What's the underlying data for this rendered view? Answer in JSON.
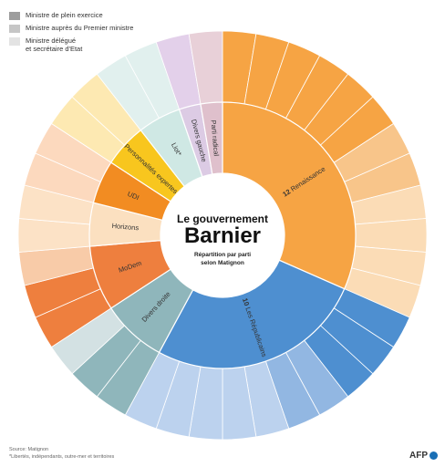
{
  "legend": {
    "items": [
      {
        "label": "Ministre de plein exercice",
        "color": "#9d9d9d"
      },
      {
        "label": "Ministre auprès du Premier ministre",
        "color": "#c6c6c6"
      },
      {
        "label": "Ministre délégué\net secrétaire d'Etat",
        "color": "#e3e3e3"
      }
    ]
  },
  "center": {
    "title": "Le gouvernement",
    "name": "Barnier",
    "subtitle_line1": "Répartition par parti",
    "subtitle_line2": "selon Matignon"
  },
  "footer": {
    "source": "Source: Matignon",
    "footnote": "*Libertés, indépendants, outre-mer et territoires",
    "logo_text": "AFP"
  },
  "chart_data": {
    "type": "sunburst",
    "title": "Le gouvernement Barnier",
    "subtitle": "Répartition par parti selon Matignon",
    "parties": [
      {
        "name": "Renaissance",
        "label": "12 Renaissance",
        "count": 12,
        "ministers": {
          "plein_exercice": 6,
          "aupres_premier_ministre": 2,
          "delegue_secretaire_etat": 4
        },
        "colors": [
          "#f6a444",
          "#f8c58a",
          "#fbdcb6"
        ],
        "inner_color": "#f6a444"
      },
      {
        "name": "Les Républicains",
        "label": "10 Les Républicains",
        "count": 10,
        "ministers": {
          "plein_exercice": 3,
          "aupres_premier_ministre": 2,
          "delegue_secretaire_etat": 5
        },
        "colors": [
          "#4e8fd0",
          "#92b7e2",
          "#bcd2ee"
        ],
        "inner_color": "#4e8fd0"
      },
      {
        "name": "Divers droite",
        "label": "Divers droite",
        "count": 3,
        "ministers": {
          "plein_exercice": 2,
          "aupres_premier_ministre": 0,
          "delegue_secretaire_etat": 1
        },
        "colors": [
          "#8fb6bb",
          "#b8d0d3",
          "#d3e1e3"
        ],
        "inner_color": "#8fb6bb"
      },
      {
        "name": "MoDem",
        "label": "MoDem",
        "count": 3,
        "ministers": {
          "plein_exercice": 2,
          "aupres_premier_ministre": 0,
          "delegue_secretaire_etat": 1
        },
        "colors": [
          "#ee7f3e",
          "#f4b184",
          "#f8cba8"
        ],
        "inner_color": "#ee7f3e"
      },
      {
        "name": "Horizons",
        "label": "Horizons",
        "count": 2,
        "ministers": {
          "plein_exercice": 0,
          "aupres_premier_ministre": 0,
          "delegue_secretaire_etat": 2
        },
        "colors": [
          "#f9d6b0",
          "#fad9b6",
          "#fce2c6"
        ],
        "inner_color": "#fbe0c0"
      },
      {
        "name": "UDI",
        "label": "UDI",
        "count": 2,
        "ministers": {
          "plein_exercice": 0,
          "aupres_premier_ministre": 0,
          "delegue_secretaire_etat": 2
        },
        "colors": [
          "#f59b5a",
          "#f8be93",
          "#fcd9be"
        ],
        "inner_color": "#f28c22"
      },
      {
        "name": "Personnalités expertes",
        "label": "Personnalités expertes",
        "count": 2,
        "ministers": {
          "plein_exercice": 0,
          "aupres_premier_ministre": 0,
          "delegue_secretaire_etat": 2
        },
        "colors": [
          "#f8cc3a",
          "#fbe096",
          "#fde9b2"
        ],
        "inner_color": "#f8c61e"
      },
      {
        "name": "Liot*",
        "label": "Liot*",
        "count": 2,
        "ministers": {
          "plein_exercice": 0,
          "aupres_premier_ministre": 0,
          "delegue_secretaire_etat": 2
        },
        "colors": [
          "#cfe8e4",
          "#cfe8e4",
          "#e1f0ee"
        ],
        "inner_color": "#cfe8e4"
      },
      {
        "name": "Divers gauche",
        "label": "Divers gauche",
        "count": 1,
        "ministers": {
          "plein_exercice": 0,
          "aupres_premier_ministre": 0,
          "delegue_secretaire_etat": 1
        },
        "colors": [
          "#d9c4e2",
          "#d9c4e2",
          "#e3d0ea"
        ],
        "inner_color": "#dccbe4"
      },
      {
        "name": "Parti radical",
        "label": "Parti radical",
        "count": 1,
        "ministers": {
          "plein_exercice": 0,
          "aupres_premier_ministre": 0,
          "delegue_secretaire_etat": 1
        },
        "colors": [
          "#e2c4cf",
          "#e2c4cf",
          "#e8d0d8"
        ],
        "inner_color": "#dfc0cc"
      }
    ],
    "total": 38
  }
}
